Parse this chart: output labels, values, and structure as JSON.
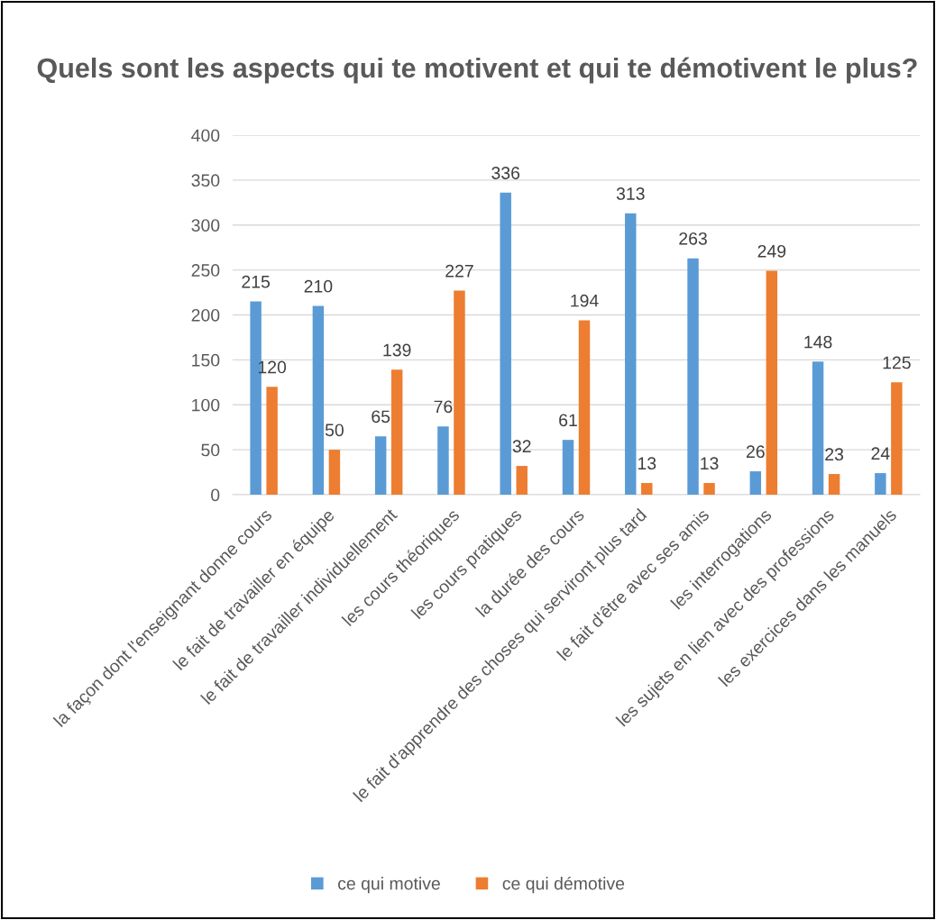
{
  "chart_data": {
    "type": "bar",
    "title": "Quels sont les aspects qui te motivent et qui te démotivent le plus?",
    "categories": [
      "la façon dont l'enseignant donne cours",
      "le fait de travailler en équipe",
      "le fait de travailler individuellement",
      "les cours théoriques",
      "les cours pratiques",
      "la durée des cours",
      "le fait d'apprendre des choses qui serviront plus tard",
      "le fait d'être avec ses amis",
      "les interrogations",
      "les sujets en lien avec des professions",
      "les exercices dans les manuels"
    ],
    "series": [
      {
        "name": "ce qui motive",
        "color": "#5b9bd5",
        "values": [
          215,
          210,
          65,
          76,
          336,
          61,
          313,
          263,
          26,
          148,
          24
        ]
      },
      {
        "name": "ce qui démotive",
        "color": "#ed7d31",
        "values": [
          120,
          50,
          139,
          227,
          32,
          194,
          13,
          13,
          249,
          23,
          125
        ]
      }
    ],
    "ylim": [
      0,
      400
    ],
    "yticks": [
      0,
      50,
      100,
      150,
      200,
      250,
      300,
      350,
      400
    ],
    "grid": "y",
    "legend": "bottom",
    "data_labels": true
  }
}
